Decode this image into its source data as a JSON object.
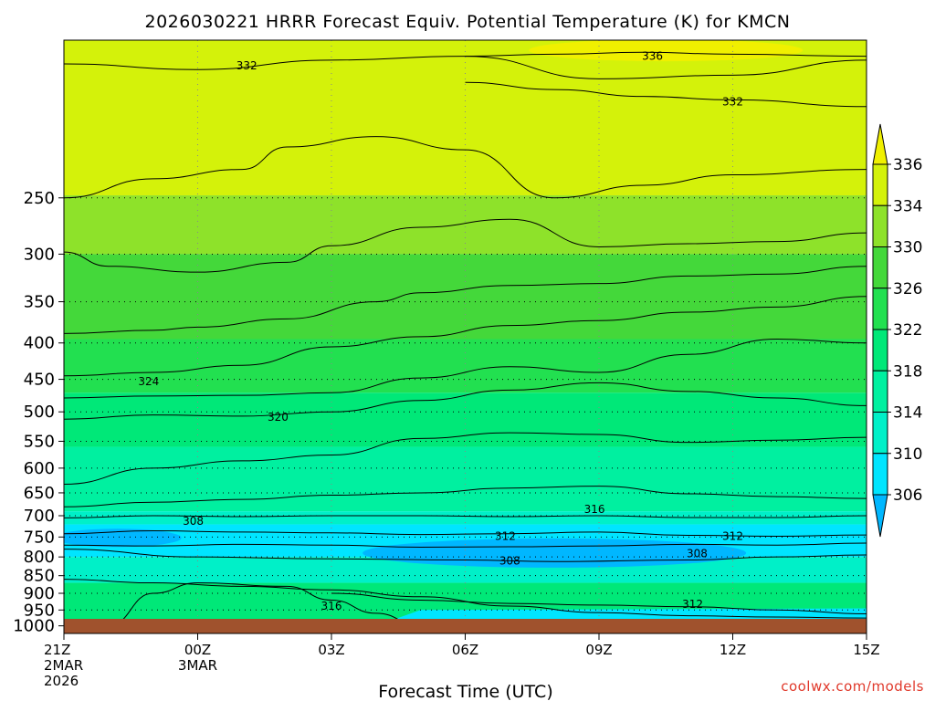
{
  "chart_data": {
    "type": "heatmap",
    "title": "2026030221 HRRR Forecast Equiv. Potential Temperature (K) for KMCN",
    "xlabel": "Forecast Time (UTC)",
    "credit": "coolwx.com/models",
    "x_ticks": [
      {
        "lines": [
          "21Z",
          "2MAR",
          "2026"
        ],
        "hour": 0
      },
      {
        "lines": [
          "00Z",
          "3MAR"
        ],
        "hour": 3
      },
      {
        "lines": [
          "03Z"
        ],
        "hour": 6
      },
      {
        "lines": [
          "06Z"
        ],
        "hour": 9
      },
      {
        "lines": [
          "09Z"
        ],
        "hour": 12
      },
      {
        "lines": [
          "12Z"
        ],
        "hour": 15
      },
      {
        "lines": [
          "15Z"
        ],
        "hour": 18
      }
    ],
    "y_ticks": [
      250,
      300,
      350,
      400,
      450,
      500,
      550,
      600,
      650,
      700,
      750,
      800,
      850,
      900,
      950,
      1000
    ],
    "ylim": [
      1025,
      150
    ],
    "y_scale": "log-pressure",
    "grid": true,
    "colorbar": {
      "levels": [
        306,
        310,
        314,
        318,
        322,
        326,
        330,
        334,
        336
      ],
      "labels": [
        "306",
        "310",
        "314",
        "318",
        "322",
        "326",
        "330",
        "334",
        "336"
      ],
      "colors": [
        "#00b7ff",
        "#00e5ff",
        "#00f0c8",
        "#00f0a0",
        "#00e878",
        "#22e050",
        "#44d83a",
        "#8ee22a",
        "#d4f20a",
        "#f0f000"
      ],
      "placement": "right"
    },
    "contour_labels": [
      {
        "text": "332",
        "hour": 4.1,
        "p": 163
      },
      {
        "text": "336",
        "hour": 13.2,
        "p": 158
      },
      {
        "text": "332",
        "hour": 15.0,
        "p": 183
      },
      {
        "text": "324",
        "hour": 1.9,
        "p": 453
      },
      {
        "text": "320",
        "hour": 4.8,
        "p": 509
      },
      {
        "text": "316",
        "hour": 11.9,
        "p": 686
      },
      {
        "text": "308",
        "hour": 2.9,
        "p": 712
      },
      {
        "text": "312",
        "hour": 9.9,
        "p": 748
      },
      {
        "text": "312",
        "hour": 15.0,
        "p": 748
      },
      {
        "text": "308",
        "hour": 10.0,
        "p": 810
      },
      {
        "text": "308",
        "hour": 14.2,
        "p": 791
      },
      {
        "text": "316",
        "hour": 6.0,
        "p": 938
      },
      {
        "text": "312",
        "hour": 14.1,
        "p": 932
      }
    ],
    "contour_lines": [
      {
        "level": 332,
        "points": [
          [
            0,
            162
          ],
          [
            3,
            165
          ],
          [
            6,
            160
          ],
          [
            9,
            158
          ],
          [
            12,
            170
          ],
          [
            15,
            168
          ],
          [
            18,
            160
          ]
        ]
      },
      {
        "level": 336,
        "points": [
          [
            9,
            158
          ],
          [
            11,
            157
          ],
          [
            13,
            156
          ],
          [
            15,
            157
          ],
          [
            18,
            158
          ]
        ]
      },
      {
        "level": 332,
        "points": [
          [
            9,
            172
          ],
          [
            11,
            176
          ],
          [
            13,
            180
          ],
          [
            15,
            182
          ],
          [
            18,
            186
          ]
        ]
      },
      {
        "level": 330,
        "points": [
          [
            0,
            250
          ],
          [
            2,
            235
          ],
          [
            4,
            228
          ],
          [
            5,
            212
          ],
          [
            7,
            205
          ],
          [
            9,
            214
          ],
          [
            11,
            250
          ],
          [
            13,
            240
          ],
          [
            15,
            232
          ],
          [
            18,
            228
          ]
        ]
      },
      {
        "level": 328,
        "points": [
          [
            0,
            298
          ],
          [
            1,
            312
          ],
          [
            3,
            318
          ],
          [
            5,
            308
          ],
          [
            6,
            292
          ],
          [
            8,
            275
          ],
          [
            10,
            268
          ],
          [
            12,
            293
          ],
          [
            14,
            290
          ],
          [
            16,
            288
          ],
          [
            18,
            280
          ]
        ]
      },
      {
        "level": 326,
        "points": [
          [
            0,
            388
          ],
          [
            2,
            384
          ],
          [
            3,
            380
          ],
          [
            5,
            370
          ],
          [
            7,
            350
          ],
          [
            8,
            340
          ],
          [
            10,
            332
          ],
          [
            12,
            330
          ],
          [
            14,
            322
          ],
          [
            16,
            320
          ],
          [
            18,
            312
          ]
        ]
      },
      {
        "level": 324,
        "points": [
          [
            0,
            445
          ],
          [
            2,
            440
          ],
          [
            4,
            430
          ],
          [
            6,
            405
          ],
          [
            8,
            392
          ],
          [
            10,
            378
          ],
          [
            12,
            372
          ],
          [
            14,
            362
          ],
          [
            16,
            356
          ],
          [
            18,
            344
          ]
        ]
      },
      {
        "level": 322,
        "points": [
          [
            0,
            478
          ],
          [
            2,
            475
          ],
          [
            4,
            474
          ],
          [
            6,
            470
          ],
          [
            8,
            448
          ],
          [
            10,
            432
          ],
          [
            12,
            440
          ],
          [
            14,
            415
          ],
          [
            16,
            395
          ],
          [
            18,
            400
          ]
        ]
      },
      {
        "level": 320,
        "points": [
          [
            0,
            512
          ],
          [
            2,
            505
          ],
          [
            4,
            507
          ],
          [
            6,
            500
          ],
          [
            8,
            482
          ],
          [
            10,
            466
          ],
          [
            12,
            455
          ],
          [
            14,
            468
          ],
          [
            16,
            478
          ],
          [
            18,
            490
          ]
        ]
      },
      {
        "level": 318,
        "points": [
          [
            0,
            632
          ],
          [
            2,
            600
          ],
          [
            4,
            586
          ],
          [
            6,
            575
          ],
          [
            8,
            545
          ],
          [
            10,
            535
          ],
          [
            12,
            538
          ],
          [
            14,
            552
          ],
          [
            16,
            548
          ],
          [
            18,
            543
          ]
        ]
      },
      {
        "level": 316,
        "points": [
          [
            0,
            680
          ],
          [
            2,
            670
          ],
          [
            4,
            664
          ],
          [
            6,
            655
          ],
          [
            8,
            650
          ],
          [
            10,
            640
          ],
          [
            12,
            636
          ],
          [
            14,
            652
          ],
          [
            16,
            658
          ],
          [
            18,
            662
          ]
        ]
      },
      {
        "level": 314,
        "points": [
          [
            0,
            705
          ],
          [
            2,
            700
          ],
          [
            4,
            702
          ],
          [
            6,
            700
          ],
          [
            8,
            700
          ],
          [
            10,
            702
          ],
          [
            12,
            700
          ],
          [
            14,
            704
          ],
          [
            16,
            704
          ],
          [
            18,
            700
          ]
        ]
      },
      {
        "level": 312,
        "points": [
          [
            0,
            742
          ],
          [
            2,
            735
          ],
          [
            4,
            738
          ],
          [
            6,
            740
          ],
          [
            8,
            744
          ],
          [
            10,
            742
          ],
          [
            12,
            738
          ],
          [
            14,
            746
          ],
          [
            16,
            748
          ],
          [
            18,
            745
          ]
        ]
      },
      {
        "level": 310,
        "points": [
          [
            0,
            770
          ],
          [
            2,
            772
          ],
          [
            4,
            768
          ],
          [
            6,
            770
          ],
          [
            8,
            775
          ],
          [
            10,
            774
          ],
          [
            12,
            772
          ],
          [
            14,
            768
          ],
          [
            16,
            770
          ],
          [
            18,
            765
          ]
        ]
      },
      {
        "level": 308,
        "points": [
          [
            0,
            780
          ],
          [
            3,
            800
          ],
          [
            6,
            805
          ],
          [
            9,
            808
          ],
          [
            11,
            812
          ],
          [
            14,
            808
          ],
          [
            16,
            800
          ],
          [
            18,
            795
          ]
        ]
      },
      {
        "level": 312,
        "points": [
          [
            6,
            900
          ],
          [
            8,
            920
          ],
          [
            10,
            930
          ],
          [
            12,
            935
          ],
          [
            14,
            940
          ],
          [
            16,
            950
          ],
          [
            18,
            962
          ]
        ]
      },
      {
        "level": 314,
        "points": [
          [
            0,
            860
          ],
          [
            2,
            870
          ],
          [
            4,
            880
          ],
          [
            6,
            890
          ],
          [
            8,
            910
          ],
          [
            10,
            938
          ],
          [
            12,
            958
          ],
          [
            14,
            968
          ],
          [
            16,
            972
          ],
          [
            18,
            975
          ]
        ]
      },
      {
        "level": 316,
        "points": [
          [
            1,
            1000
          ],
          [
            2,
            900
          ],
          [
            3,
            870
          ],
          [
            5,
            880
          ],
          [
            6,
            920
          ],
          [
            7,
            960
          ],
          [
            8,
            1000
          ]
        ]
      }
    ]
  }
}
